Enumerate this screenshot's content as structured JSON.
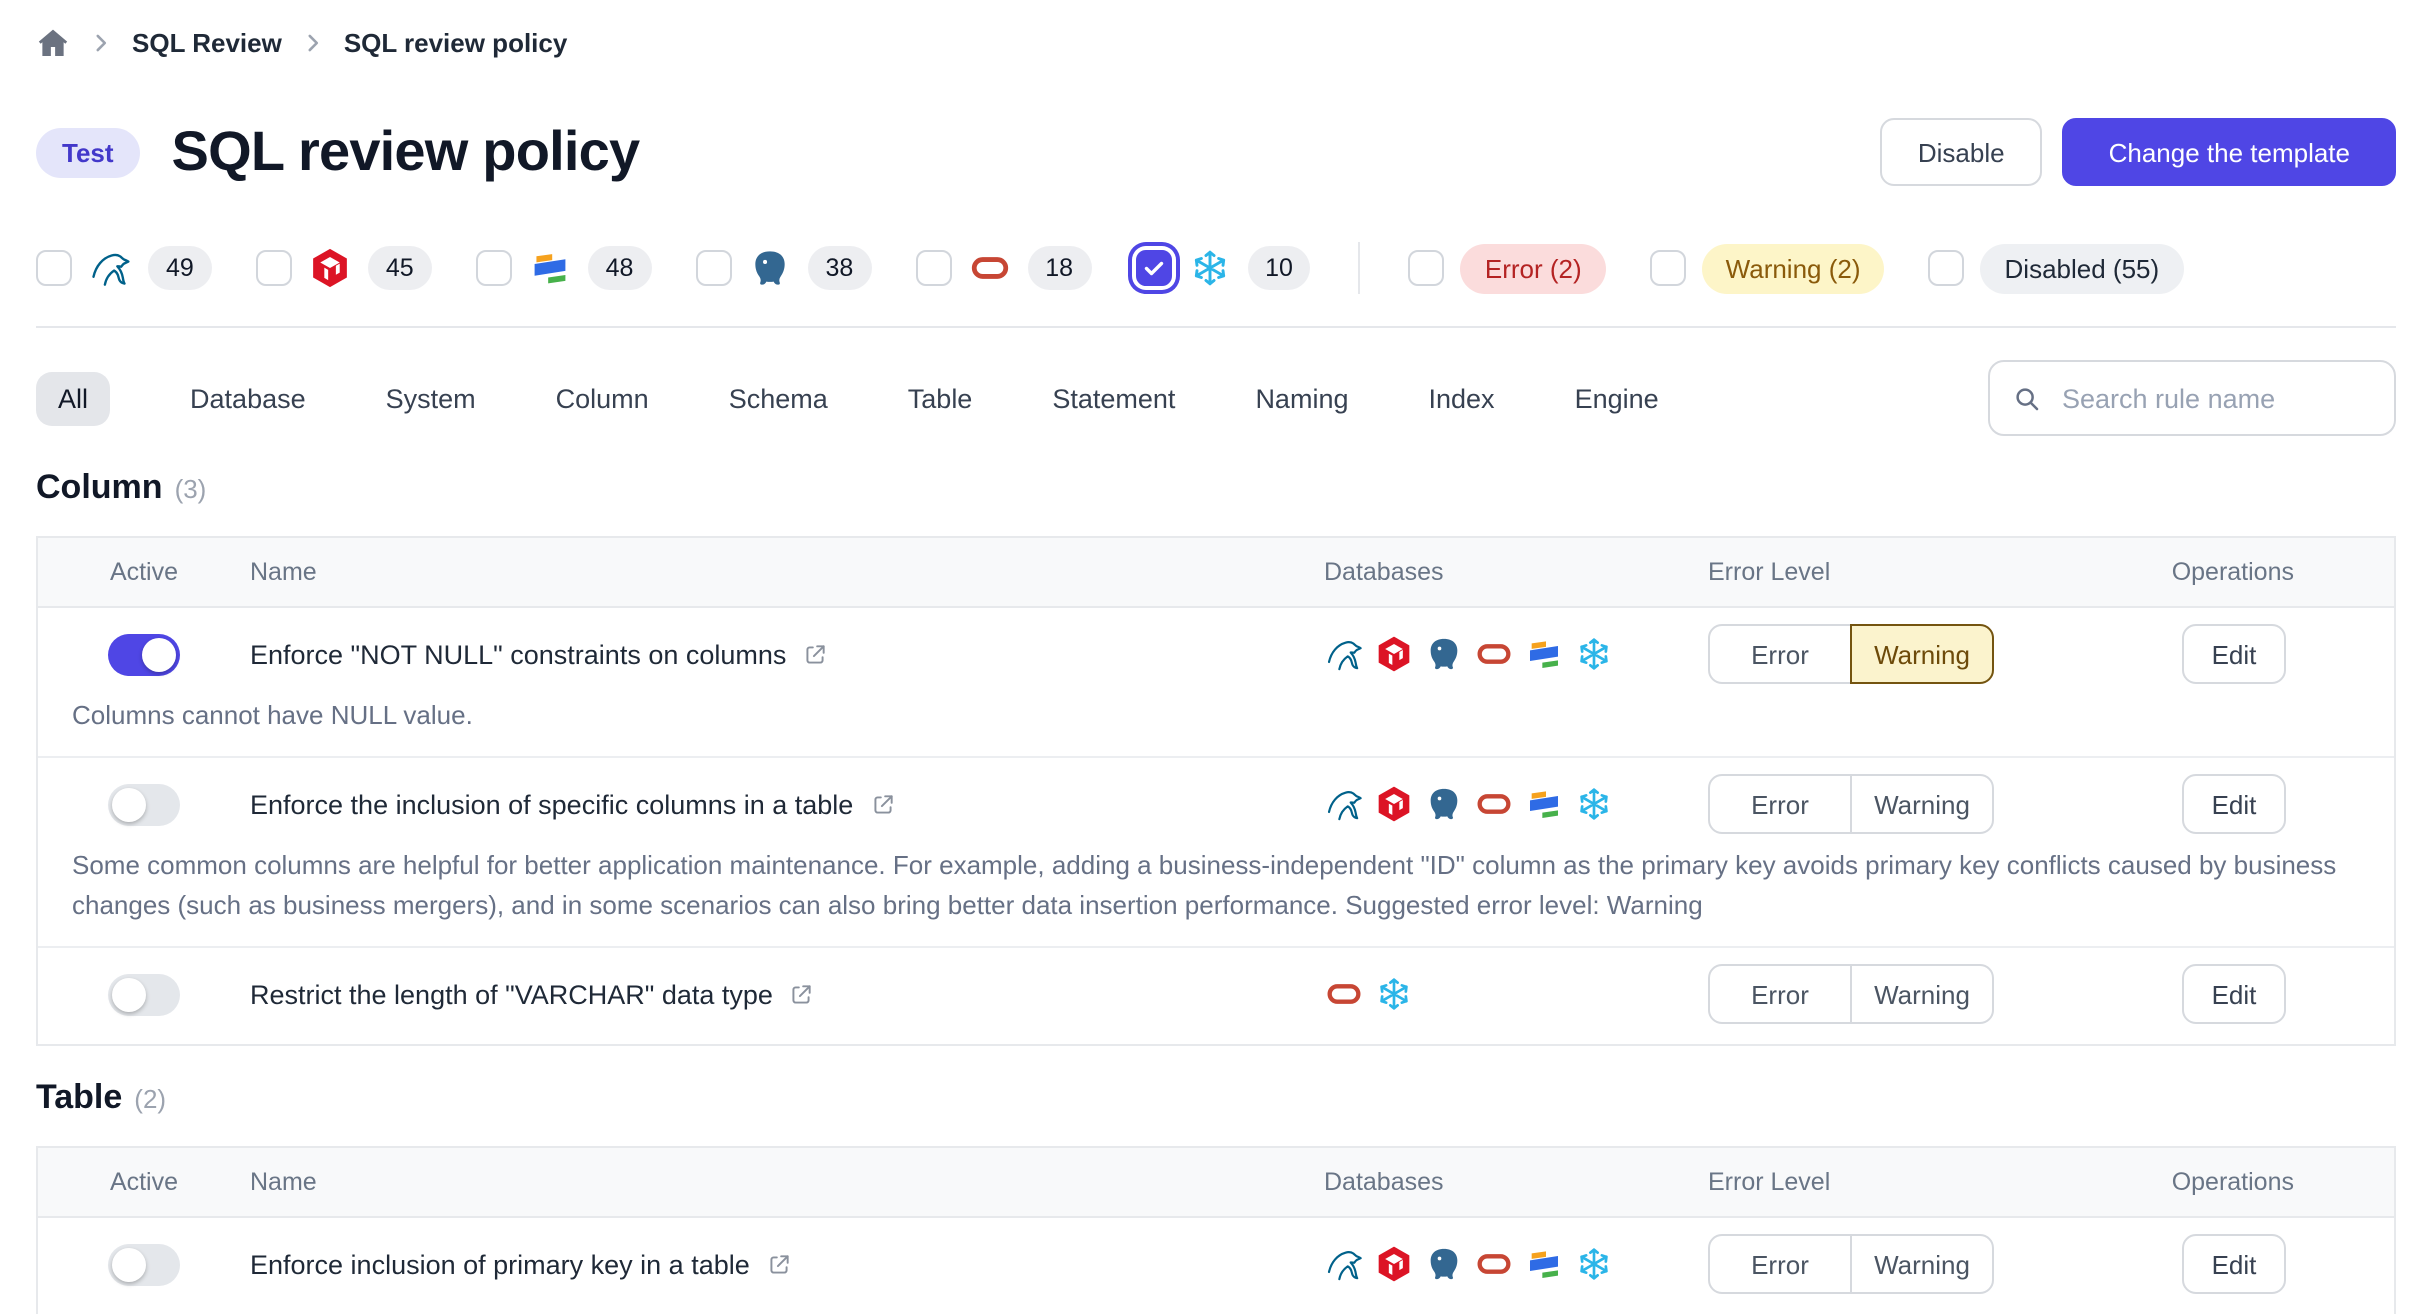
{
  "breadcrumb": {
    "items": [
      {
        "label": "SQL Review"
      },
      {
        "label": "SQL review policy"
      }
    ]
  },
  "header": {
    "badge": "Test",
    "title": "SQL review policy",
    "disable_button": "Disable",
    "change_template_button": "Change the template"
  },
  "filters": {
    "engines": [
      {
        "id": "mysql",
        "count": "49",
        "checked": false
      },
      {
        "id": "tidb",
        "count": "45",
        "checked": false
      },
      {
        "id": "oceanbase",
        "count": "48",
        "checked": false
      },
      {
        "id": "postgresql",
        "count": "38",
        "checked": false
      },
      {
        "id": "oracle",
        "count": "18",
        "checked": false
      },
      {
        "id": "snowflake",
        "count": "10",
        "checked": true
      }
    ],
    "levels": [
      {
        "id": "error",
        "label": "Error (2)",
        "checked": false
      },
      {
        "id": "warning",
        "label": "Warning (2)",
        "checked": false
      },
      {
        "id": "disabled",
        "label": "Disabled (55)",
        "checked": false
      }
    ]
  },
  "tabs": {
    "selected": "All",
    "items": [
      "All",
      "Database",
      "System",
      "Column",
      "Schema",
      "Table",
      "Statement",
      "Naming",
      "Index",
      "Engine"
    ]
  },
  "search": {
    "placeholder": "Search rule name"
  },
  "table": {
    "headers": [
      "Active",
      "Name",
      "Databases",
      "Error Level",
      "Operations"
    ],
    "level_buttons": {
      "error": "Error",
      "warning": "Warning"
    },
    "edit_button": "Edit"
  },
  "sections": [
    {
      "title": "Column",
      "count": "(3)",
      "rules": [
        {
          "active": true,
          "name": "Enforce \"NOT NULL\" constraints on columns",
          "description": "Columns cannot have NULL value.",
          "databases": [
            "mysql",
            "tidb",
            "postgresql",
            "oracle",
            "oceanbase",
            "snowflake"
          ],
          "selected_level": "warning"
        },
        {
          "active": false,
          "name": "Enforce the inclusion of specific columns in a table",
          "description": "Some common columns are helpful for better application maintenance. For example, adding a business-independent \"ID\" column as the primary key avoids primary key conflicts caused by business changes (such as business mergers), and in some scenarios can also bring better data insertion performance. Suggested error level: Warning",
          "databases": [
            "mysql",
            "tidb",
            "postgresql",
            "oracle",
            "oceanbase",
            "snowflake"
          ],
          "selected_level": null
        },
        {
          "active": false,
          "name": "Restrict the length of \"VARCHAR\" data type",
          "description": null,
          "databases": [
            "oracle",
            "snowflake"
          ],
          "selected_level": null
        }
      ]
    },
    {
      "title": "Table",
      "count": "(2)",
      "rules": [
        {
          "active": false,
          "name": "Enforce inclusion of primary key in a table",
          "description": null,
          "databases": [
            "mysql",
            "tidb",
            "postgresql",
            "oracle",
            "oceanbase",
            "snowflake"
          ],
          "selected_level": null
        }
      ]
    }
  ],
  "colors": {
    "accent": "#4f46e5",
    "badge-bg": "#e4e5fa",
    "badge-text": "#4338ca",
    "error-pill-bg": "#fbdcdc",
    "error-pill-text": "#b42323",
    "warning-pill-bg": "#fdf5c8",
    "warning-pill-text": "#8a5a0b",
    "disabled-pill-bg": "#eef0f3",
    "disabled-pill-text": "#1f2937",
    "warning-selected-bg": "#fbf3cd",
    "warning-selected-border": "#745410",
    "mysql": "#00618a",
    "tidb": "#dc1425",
    "postgresql": "#336791",
    "oracle": "#c74634",
    "oceanbase-orange": "#f6a21e",
    "oceanbase-blue": "#2f6be5",
    "oceanbase-green": "#47b14b",
    "snowflake": "#2bb5e8"
  }
}
